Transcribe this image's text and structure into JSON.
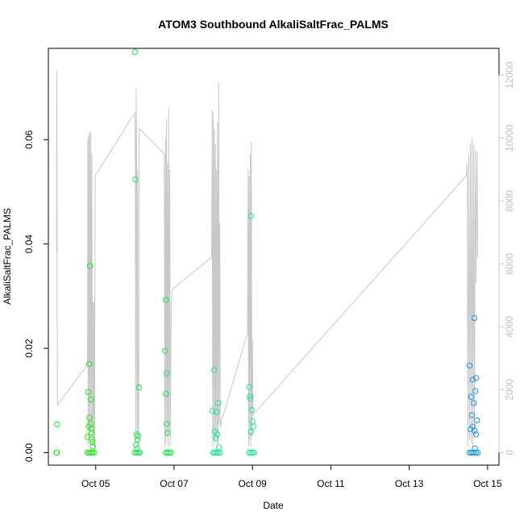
{
  "chart_data": {
    "type": "scatter",
    "title": "ATOM3 Southbound AlkaliSaltFrac_PALMS",
    "xlabel": "Date",
    "ylabel": "AlkaliSaltFrac_PALMS",
    "x_tick_labels": [
      "Oct 05",
      "Oct 07",
      "Oct 09",
      "Oct 11",
      "Oct 13",
      "Oct 15"
    ],
    "x_tick_dates": [
      "2017-10-05",
      "2017-10-07",
      "2017-10-09",
      "2017-10-11",
      "2017-10-13",
      "2017-10-15"
    ],
    "xlim": [
      "2017-10-03 19:00",
      "2017-10-15 07:00"
    ],
    "y_tick_labels": [
      "0.00",
      "0.02",
      "0.04",
      "0.06"
    ],
    "ylim": [
      -0.0024,
      0.0775
    ],
    "y2_tick_labels": [
      "0",
      "2000",
      "4000",
      "6000",
      "8000",
      "10000",
      "12000"
    ],
    "y2lim": [
      -400,
      12850
    ],
    "secondary_series_color": "#c8c8c8",
    "legend": "none",
    "grid": false,
    "segments": [
      {
        "name": "",
        "color": "#28e61e",
        "points": [
          [
            "2017-10-04 00:00",
            0.0
          ],
          [
            "2017-10-04 00:10",
            0.0
          ],
          [
            "2017-10-04 00:20",
            0.0054
          ],
          [
            "2017-10-04 19:00",
            0.0
          ],
          [
            "2017-10-04 19:30",
            0.0116
          ],
          [
            "2017-10-04 20:00",
            0.017
          ],
          [
            "2017-10-04 20:30",
            0.0358
          ],
          [
            "2017-10-04 20:15",
            0.0067
          ],
          [
            "2017-10-04 20:45",
            0.0055
          ],
          [
            "2017-10-04 21:00",
            0.0102
          ],
          [
            "2017-10-04 21:15",
            0.0046
          ],
          [
            "2017-10-04 21:30",
            0.0038
          ],
          [
            "2017-10-04 21:45",
            0.0025
          ],
          [
            "2017-10-04 22:00",
            0.002
          ],
          [
            "2017-10-04 22:15",
            0.0012
          ],
          [
            "2017-10-04 20:00",
            0.0
          ],
          [
            "2017-10-04 21:00",
            0.0
          ],
          [
            "2017-10-04 22:00",
            0.0
          ],
          [
            "2017-10-04 23:00",
            0.0
          ],
          [
            "2017-10-04 19:00",
            0.003
          ],
          [
            "2017-10-04 19:45",
            0.005
          ]
        ]
      },
      {
        "name": "",
        "color": "#1ee650",
        "points": [
          [
            "2017-10-06 00:00",
            0.0768
          ],
          [
            "2017-10-06 00:20",
            0.0524
          ],
          [
            "2017-10-06 02:30",
            0.0125
          ],
          [
            "2017-10-06 01:00",
            0.0035
          ],
          [
            "2017-10-06 01:30",
            0.0025
          ],
          [
            "2017-10-06 02:00",
            0.0032
          ],
          [
            "2017-10-06 00:45",
            0.0015
          ],
          [
            "2017-10-06 01:15",
            0.0008
          ],
          [
            "2017-10-06 00:00",
            0.0
          ],
          [
            "2017-10-06 01:00",
            0.0
          ],
          [
            "2017-10-06 02:00",
            0.0
          ],
          [
            "2017-10-06 03:00",
            0.0
          ],
          [
            "2017-10-06 18:30",
            0.0195
          ],
          [
            "2017-10-06 19:00",
            0.0293
          ],
          [
            "2017-10-06 19:30",
            0.0152
          ],
          [
            "2017-10-06 19:00",
            0.0113
          ],
          [
            "2017-10-06 19:30",
            0.0055
          ],
          [
            "2017-10-06 20:00",
            0.0038
          ],
          [
            "2017-10-06 19:00",
            0.0
          ],
          [
            "2017-10-06 20:00",
            0.0
          ],
          [
            "2017-10-06 21:00",
            0.0
          ],
          [
            "2017-10-06 22:00",
            0.0
          ]
        ]
      },
      {
        "name": "",
        "color": "#1ee6a0",
        "points": [
          [
            "2017-10-08 00:30",
            0.0158
          ],
          [
            "2017-10-07 23:30",
            0.008
          ],
          [
            "2017-10-08 02:00",
            0.0078
          ],
          [
            "2017-10-08 03:00",
            0.0095
          ],
          [
            "2017-10-08 01:00",
            0.004
          ],
          [
            "2017-10-08 02:30",
            0.0035
          ],
          [
            "2017-10-08 01:30",
            0.0028
          ],
          [
            "2017-10-08 03:30",
            0.001
          ],
          [
            "2017-10-08 00:00",
            0.0
          ],
          [
            "2017-10-08 01:00",
            0.0
          ],
          [
            "2017-10-08 02:00",
            0.0
          ],
          [
            "2017-10-08 03:00",
            0.0
          ],
          [
            "2017-10-08 04:00",
            0.0
          ],
          [
            "2017-10-08 22:00",
            0.0126
          ],
          [
            "2017-10-08 22:30",
            0.0108
          ],
          [
            "2017-10-08 23:00",
            0.0454
          ],
          [
            "2017-10-08 22:45",
            0.0103
          ],
          [
            "2017-10-08 23:30",
            0.0082
          ],
          [
            "2017-10-09 00:00",
            0.006
          ],
          [
            "2017-10-09 00:30",
            0.005
          ],
          [
            "2017-10-08 23:00",
            0.004
          ],
          [
            "2017-10-08 22:00",
            0.0
          ],
          [
            "2017-10-08 23:00",
            0.0
          ],
          [
            "2017-10-09 00:00",
            0.0
          ],
          [
            "2017-10-09 01:00",
            0.0
          ]
        ]
      },
      {
        "name": "",
        "color": "#2196e6",
        "points": [
          [
            "2017-10-14 13:00",
            0.0167
          ],
          [
            "2017-10-14 14:00",
            0.0107
          ],
          [
            "2017-10-14 15:00",
            0.014
          ],
          [
            "2017-10-14 16:00",
            0.0258
          ],
          [
            "2017-10-14 17:00",
            0.0143
          ],
          [
            "2017-10-14 16:30",
            0.0118
          ],
          [
            "2017-10-14 15:30",
            0.0095
          ],
          [
            "2017-10-14 17:30",
            0.0062
          ],
          [
            "2017-10-14 14:30",
            0.0072
          ],
          [
            "2017-10-14 15:00",
            0.005
          ],
          [
            "2017-10-14 16:00",
            0.0042
          ],
          [
            "2017-10-14 17:00",
            0.0035
          ],
          [
            "2017-10-14 13:30",
            0.0045
          ],
          [
            "2017-10-14 13:00",
            0.0
          ],
          [
            "2017-10-14 14:00",
            0.0
          ],
          [
            "2017-10-14 15:00",
            0.0
          ],
          [
            "2017-10-14 16:00",
            0.0
          ],
          [
            "2017-10-14 17:00",
            0.0
          ],
          [
            "2017-10-14 18:00",
            0.0
          ],
          [
            "2017-10-14 16:15",
            0.0008
          ]
        ]
      }
    ],
    "secondary_line": [
      [
        "2017-10-04 00:00",
        6400
      ],
      [
        "2017-10-04 00:15",
        12150
      ],
      [
        "2017-10-04 00:30",
        1500
      ],
      [
        "2017-10-04 19:00",
        2800
      ],
      [
        "2017-10-04 19:10",
        10000
      ],
      [
        "2017-10-04 19:20",
        200
      ],
      [
        "2017-10-04 19:40",
        10100
      ],
      [
        "2017-10-04 20:00",
        400
      ],
      [
        "2017-10-04 20:20",
        10200
      ],
      [
        "2017-10-04 20:40",
        600
      ],
      [
        "2017-10-04 21:00",
        10200
      ],
      [
        "2017-10-04 21:20",
        800
      ],
      [
        "2017-10-04 21:40",
        9500
      ],
      [
        "2017-10-04 22:00",
        300
      ],
      [
        "2017-10-04 22:20",
        4800
      ],
      [
        "2017-10-04 22:40",
        200
      ],
      [
        "2017-10-04 23:00",
        4800
      ],
      [
        "2017-10-04 23:20",
        0
      ],
      [
        "2017-10-04 23:30",
        5000
      ],
      [
        "2017-10-04 23:40",
        8800
      ],
      [
        "2017-10-06 00:00",
        10800
      ],
      [
        "2017-10-06 00:15",
        9000
      ],
      [
        "2017-10-06 00:30",
        300
      ],
      [
        "2017-10-06 00:45",
        11600
      ],
      [
        "2017-10-06 01:00",
        10000
      ],
      [
        "2017-10-06 01:20",
        500
      ],
      [
        "2017-10-06 01:40",
        9000
      ],
      [
        "2017-10-06 02:00",
        200
      ],
      [
        "2017-10-06 02:20",
        600
      ],
      [
        "2017-10-06 02:40",
        10300
      ],
      [
        "2017-10-06 18:00",
        9500
      ],
      [
        "2017-10-06 18:20",
        200
      ],
      [
        "2017-10-06 18:40",
        10000
      ],
      [
        "2017-10-06 19:00",
        300
      ],
      [
        "2017-10-06 19:20",
        10600
      ],
      [
        "2017-10-06 19:40",
        500
      ],
      [
        "2017-10-06 20:00",
        9200
      ],
      [
        "2017-10-06 20:20",
        200
      ],
      [
        "2017-10-06 20:40",
        11000
      ],
      [
        "2017-10-06 21:00",
        600
      ],
      [
        "2017-10-06 21:20",
        9000
      ],
      [
        "2017-10-06 21:40",
        200
      ],
      [
        "2017-10-06 22:00",
        3200
      ],
      [
        "2017-10-06 22:20",
        4800
      ],
      [
        "2017-10-06 23:00",
        5200
      ],
      [
        "2017-10-07 23:00",
        6200
      ],
      [
        "2017-10-07 23:20",
        10900
      ],
      [
        "2017-10-07 23:40",
        200
      ],
      [
        "2017-10-08 00:00",
        10800
      ],
      [
        "2017-10-08 00:20",
        400
      ],
      [
        "2017-10-08 00:40",
        10300
      ],
      [
        "2017-10-08 01:00",
        300
      ],
      [
        "2017-10-08 01:20",
        9800
      ],
      [
        "2017-10-08 01:40",
        500
      ],
      [
        "2017-10-08 02:00",
        9000
      ],
      [
        "2017-10-08 02:20",
        200
      ],
      [
        "2017-10-08 02:40",
        10500
      ],
      [
        "2017-10-08 03:00",
        300
      ],
      [
        "2017-10-08 03:20",
        11800
      ],
      [
        "2017-10-08 03:40",
        900
      ],
      [
        "2017-10-08 04:00",
        7300
      ],
      [
        "2017-10-08 04:20",
        800
      ],
      [
        "2017-10-08 05:00",
        1000
      ],
      [
        "2017-10-08 21:00",
        3800
      ],
      [
        "2017-10-08 21:20",
        9000
      ],
      [
        "2017-10-08 21:40",
        200
      ],
      [
        "2017-10-08 22:00",
        8800
      ],
      [
        "2017-10-08 22:20",
        400
      ],
      [
        "2017-10-08 22:40",
        9500
      ],
      [
        "2017-10-08 23:00",
        200
      ],
      [
        "2017-10-08 23:20",
        9900
      ],
      [
        "2017-10-08 23:40",
        500
      ],
      [
        "2017-10-09 00:00",
        3600
      ],
      [
        "2017-10-09 00:20",
        1200
      ],
      [
        "2017-10-14 11:00",
        8800
      ],
      [
        "2017-10-14 11:30",
        9200
      ],
      [
        "2017-10-14 12:00",
        200
      ],
      [
        "2017-10-14 12:30",
        9500
      ],
      [
        "2017-10-14 13:00",
        400
      ],
      [
        "2017-10-14 13:30",
        9800
      ],
      [
        "2017-10-14 14:00",
        300
      ],
      [
        "2017-10-14 14:30",
        10000
      ],
      [
        "2017-10-14 15:00",
        200
      ],
      [
        "2017-10-14 15:30",
        9800
      ],
      [
        "2017-10-14 16:00",
        500
      ],
      [
        "2017-10-14 16:30",
        9600
      ],
      [
        "2017-10-14 17:00",
        5400
      ],
      [
        "2017-10-14 17:30",
        9600
      ],
      [
        "2017-10-14 18:00",
        6200
      ]
    ]
  }
}
